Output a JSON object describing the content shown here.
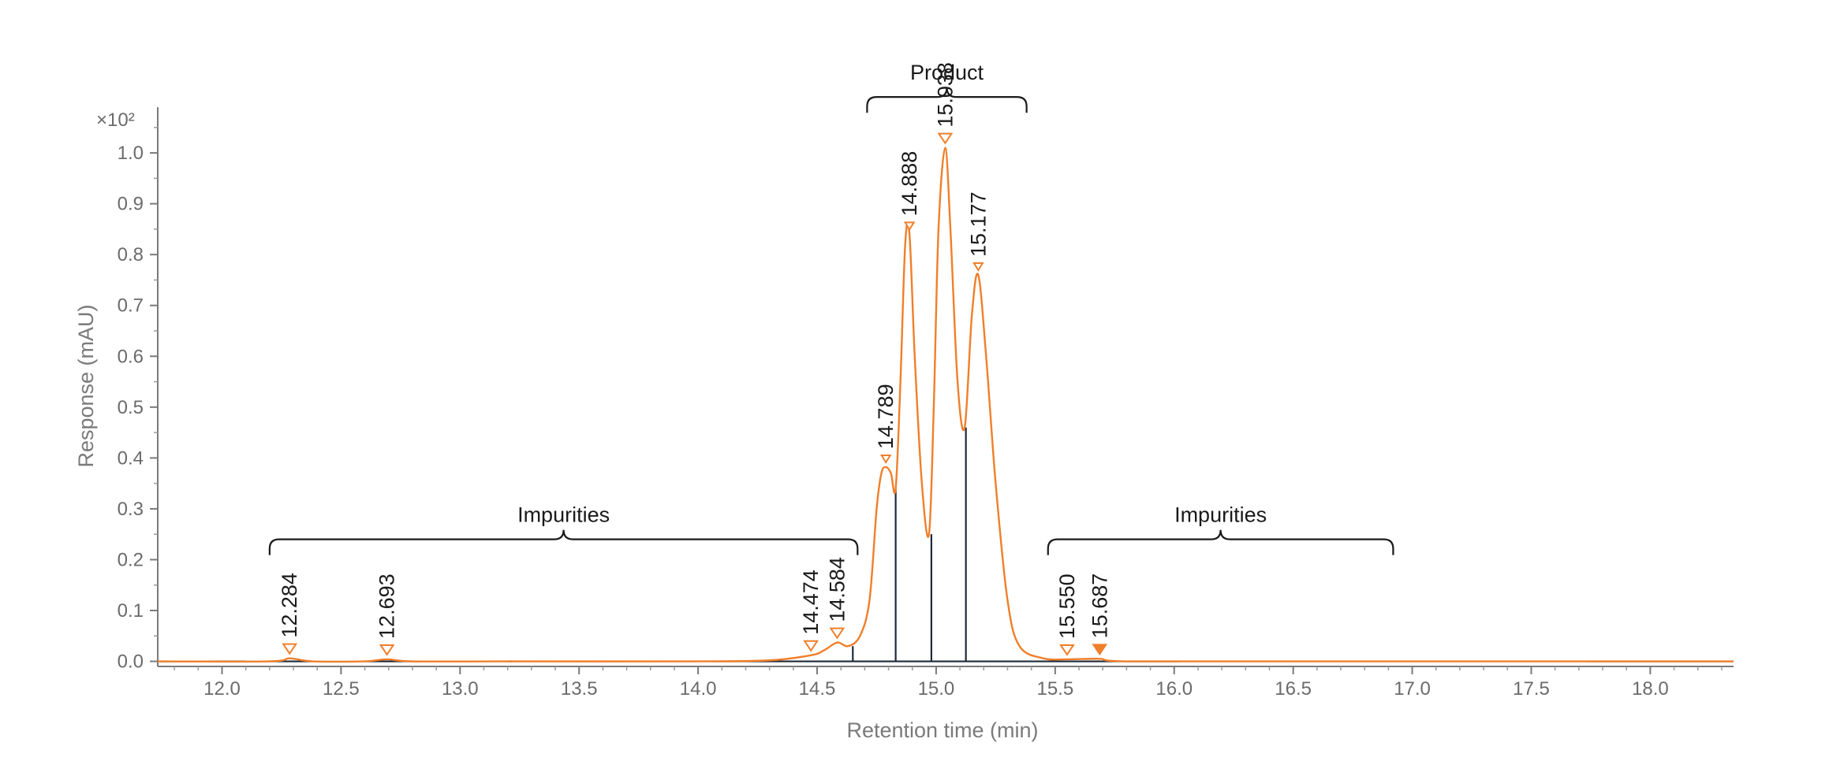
{
  "chart_data": {
    "type": "line",
    "xlabel": "Retention time (min)",
    "ylabel": "Response (mAU)",
    "y_multiplier": "×10²",
    "xlim": [
      11.73,
      18.35
    ],
    "ylim": [
      -0.01,
      1.09
    ],
    "x_ticks": [
      "12.0",
      "12.5",
      "13.0",
      "13.5",
      "14.0",
      "14.5",
      "15.0",
      "15.5",
      "16.0",
      "16.5",
      "17.0",
      "17.5",
      "18.0"
    ],
    "y_ticks": [
      "0.0",
      "0.1",
      "0.2",
      "0.3",
      "0.4",
      "0.5",
      "0.6",
      "0.7",
      "0.8",
      "0.9",
      "1.0"
    ],
    "series": [
      {
        "color": "#f07f2a",
        "x": [
          11.73,
          12.2,
          12.284,
          12.38,
          12.6,
          12.693,
          12.8,
          13.2,
          14.0,
          14.3,
          14.474,
          14.53,
          14.584,
          14.63,
          14.68,
          14.72,
          14.75,
          14.77,
          14.789,
          14.81,
          14.83,
          14.85,
          14.87,
          14.888,
          14.91,
          14.94,
          14.97,
          14.99,
          15.01,
          15.038,
          15.06,
          15.09,
          15.12,
          15.15,
          15.177,
          15.21,
          15.25,
          15.3,
          15.35,
          15.45,
          15.55,
          15.687,
          15.8,
          16.5,
          17.5,
          18.35
        ],
        "y": [
          0.0,
          0.0,
          0.006,
          0.0,
          0.0,
          0.004,
          0.0,
          0.0,
          0.0,
          0.002,
          0.012,
          0.022,
          0.037,
          0.03,
          0.05,
          0.12,
          0.3,
          0.37,
          0.382,
          0.37,
          0.34,
          0.55,
          0.82,
          0.84,
          0.6,
          0.35,
          0.25,
          0.5,
          0.85,
          1.01,
          0.85,
          0.55,
          0.46,
          0.68,
          0.76,
          0.6,
          0.35,
          0.12,
          0.03,
          0.006,
          0.004,
          0.005,
          0.0,
          0.0,
          0.0,
          0.0
        ]
      }
    ],
    "peaks": [
      {
        "label": "12.284",
        "x": 12.284,
        "y": 0.006
      },
      {
        "label": "12.693",
        "x": 12.693,
        "y": 0.004
      },
      {
        "label": "14.474",
        "x": 14.474,
        "y": 0.012
      },
      {
        "label": "14.584",
        "x": 14.584,
        "y": 0.037
      },
      {
        "label": "14.789",
        "x": 14.789,
        "y": 0.382
      },
      {
        "label": "14.888",
        "x": 14.888,
        "y": 0.84
      },
      {
        "label": "15.038",
        "x": 15.038,
        "y": 1.01
      },
      {
        "label": "15.177",
        "x": 15.177,
        "y": 0.76
      },
      {
        "label": "15.550",
        "x": 15.55,
        "y": 0.004
      },
      {
        "label": "15.687",
        "x": 15.687,
        "y": 0.005,
        "filled": true
      }
    ],
    "dividers": [
      {
        "x": 14.65,
        "y": 0.03
      },
      {
        "x": 14.83,
        "y": 0.34
      },
      {
        "x": 14.98,
        "y": 0.25
      },
      {
        "x": 15.125,
        "y": 0.46
      }
    ],
    "baseline_segments": [
      {
        "x1": 11.73,
        "x2": 12.1
      },
      {
        "x1": 12.2,
        "x2": 12.38
      },
      {
        "x1": 12.6,
        "x2": 12.83
      },
      {
        "x1": 13.2,
        "x2": 13.22
      },
      {
        "x1": 14.06,
        "x2": 16.02
      },
      {
        "x1": 17.73,
        "x2": 18.35
      }
    ],
    "groups": [
      {
        "label": "Impurities",
        "x1": 12.2,
        "x2": 14.67,
        "y": 0.24
      },
      {
        "label": "Product",
        "x1": 14.71,
        "x2": 15.38,
        "y": 1.11
      },
      {
        "label": "Impurities",
        "x1": 15.47,
        "x2": 16.92,
        "y": 0.24
      }
    ]
  }
}
